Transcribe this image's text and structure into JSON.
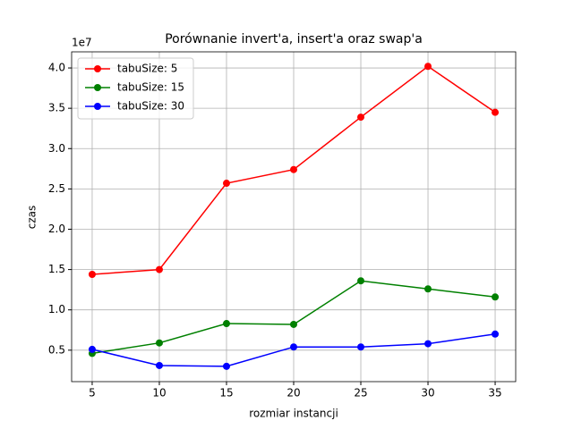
{
  "chart_data": {
    "type": "line",
    "title": "Porównanie invert'a, insert'a oraz swap'a",
    "x_label": "rozmiar instancji",
    "y_label": "czas",
    "y_offset_label": "1e7",
    "x": [
      5,
      10,
      15,
      20,
      25,
      30,
      35
    ],
    "series": [
      {
        "name": "tabuSize: 5",
        "color": "#ff0000",
        "values": [
          1.44,
          1.5,
          2.57,
          2.74,
          3.39,
          4.02,
          3.45
        ]
      },
      {
        "name": "tabuSize: 15",
        "color": "#008000",
        "values": [
          0.46,
          0.59,
          0.83,
          0.82,
          1.36,
          1.26,
          1.16
        ]
      },
      {
        "name": "tabuSize: 30",
        "color": "#0000ff",
        "values": [
          0.51,
          0.31,
          0.3,
          0.54,
          0.54,
          0.58,
          0.7
        ]
      }
    ],
    "xlim": [
      3.47,
      36.53
    ],
    "xticks": [
      5,
      10,
      15,
      20,
      25,
      30,
      35
    ],
    "ylim": [
      0.11,
      4.2
    ],
    "yticks": [
      {
        "value": 0.5,
        "label": "0.5"
      },
      {
        "value": 1,
        "label": "1.0"
      },
      {
        "value": 1.5,
        "label": "1.5"
      },
      {
        "value": 2,
        "label": "2.0"
      },
      {
        "value": 2.5,
        "label": "2.5"
      },
      {
        "value": 3,
        "label": "3.0"
      },
      {
        "value": 3.5,
        "label": "3.5"
      },
      {
        "value": 4,
        "label": "4.0"
      }
    ],
    "grid": true,
    "legend": "upper-left"
  }
}
